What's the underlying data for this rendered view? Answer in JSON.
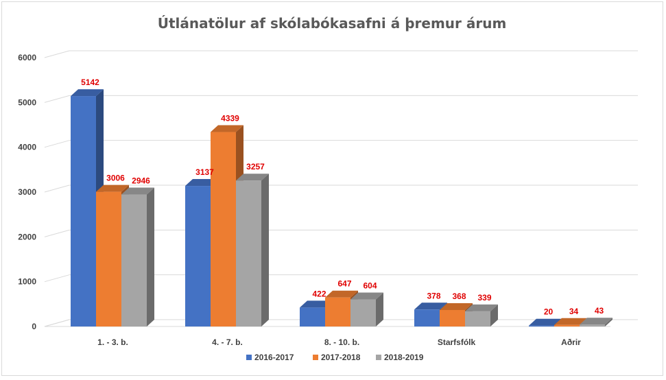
{
  "chart_data": {
    "type": "bar",
    "title": "Útlánatölur af skólabókasafni á þremur árum",
    "categories": [
      "1. - 3. b.",
      "4. - 7. b.",
      "8. - 10. b.",
      "Starfsfólk",
      "Aðrir"
    ],
    "series": [
      {
        "name": "2016-2017",
        "color": "#4472c4",
        "values": [
          5142,
          3137,
          422,
          378,
          20
        ]
      },
      {
        "name": "2017-2018",
        "color": "#ed7d31",
        "values": [
          3006,
          4339,
          647,
          368,
          34
        ]
      },
      {
        "name": "2018-2019",
        "color": "#a5a5a5",
        "values": [
          2946,
          3257,
          604,
          339,
          43
        ]
      }
    ],
    "ylim": [
      0,
      6000
    ],
    "yticks": [
      "0",
      "1000",
      "2000",
      "3000",
      "4000",
      "5000",
      "6000"
    ],
    "grid": true,
    "legend": "bottom",
    "data_label_color": "#e00000"
  }
}
